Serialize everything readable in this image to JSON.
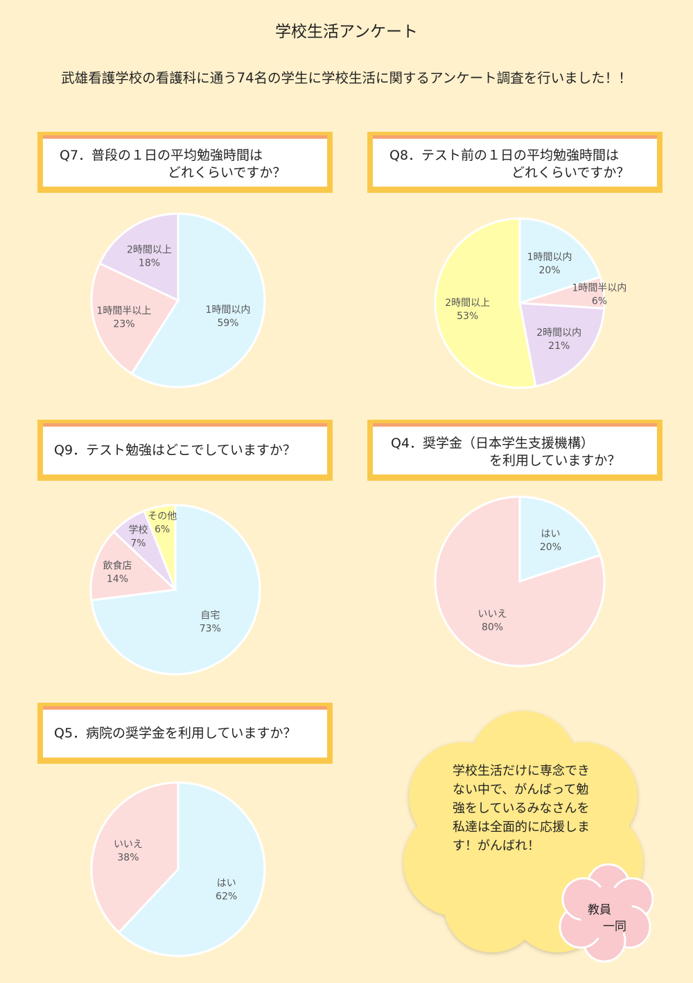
{
  "title": "学校生活アンケート",
  "intro": "武雄看護学校の看護科に通う74名の学生に学校生活に関するアンケート調査を行いました！！",
  "colors": {
    "light_blue": "#DDF6FE",
    "pink": "#FDDCDC",
    "lavender": "#EAD9F2",
    "yellow": "#FFFDA8",
    "box_border": "#F9C84B",
    "box_stripe": "#F7A270",
    "background": "#FFF1CC"
  },
  "questions": {
    "q7": {
      "line1": "Q7．普段の１日の平均勉強時間は",
      "line2": "どれくらいですか？"
    },
    "q8": {
      "line1": "Q8．テスト前の１日の平均勉強時間は",
      "line2": "どれくらいですか？"
    },
    "q9": {
      "line1": "Q9．テスト勉強はどこでしていますか？"
    },
    "q4": {
      "line1": "Q4．奨学金（日本学生支援機構）",
      "line2": "を利用していますか？"
    },
    "q5": {
      "line1": "Q5．病院の奨学金を利用していますか？"
    }
  },
  "chart_data": [
    {
      "id": "q7",
      "type": "pie",
      "categories": [
        "1時間以内",
        "1時間半以上",
        "2時間以上"
      ],
      "values": [
        59,
        23,
        18
      ],
      "labels": [
        "59%",
        "23%",
        "18%"
      ],
      "colors": [
        "#DDF6FE",
        "#FDDCDC",
        "#EAD9F2"
      ]
    },
    {
      "id": "q8",
      "type": "pie",
      "categories": [
        "1時間以内",
        "1時間半以内",
        "2時間以内",
        "2時間以上"
      ],
      "values": [
        20,
        6,
        21,
        53
      ],
      "labels": [
        "20%",
        "6%",
        "21%",
        "53%"
      ],
      "colors": [
        "#DDF6FE",
        "#FDDCDC",
        "#EAD9F2",
        "#FFFDA8"
      ]
    },
    {
      "id": "q9",
      "type": "pie",
      "categories": [
        "自宅",
        "飲食店",
        "学校",
        "その他"
      ],
      "values": [
        73,
        14,
        7,
        6
      ],
      "labels": [
        "73%",
        "14%",
        "7%",
        "6%"
      ],
      "colors": [
        "#DDF6FE",
        "#FDDCDC",
        "#EAD9F2",
        "#FFFDA8"
      ]
    },
    {
      "id": "q4",
      "type": "pie",
      "categories": [
        "はい",
        "いいえ"
      ],
      "values": [
        20,
        80
      ],
      "labels": [
        "20%",
        "80%"
      ],
      "colors": [
        "#DDF6FE",
        "#FDDCDC"
      ]
    },
    {
      "id": "q5",
      "type": "pie",
      "categories": [
        "はい",
        "いいえ"
      ],
      "values": [
        62,
        38
      ],
      "labels": [
        "62%",
        "38%"
      ],
      "colors": [
        "#DDF6FE",
        "#FDDCDC"
      ]
    }
  ],
  "message": {
    "body": "学校生活だけに専念できない中で、がんばって勉強をしているみなさんを私達は全面的に応援します！がんばれ！",
    "sign_line1": "教員",
    "sign_line2": "一同"
  }
}
